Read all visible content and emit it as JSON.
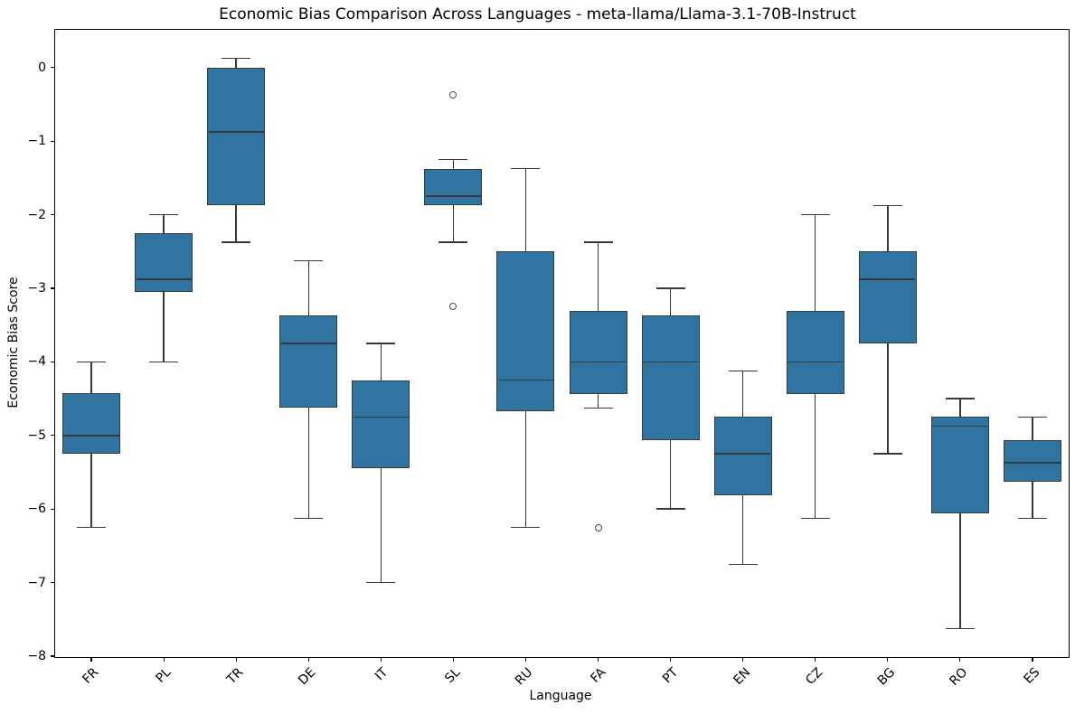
{
  "figure": {
    "background": "#ffffff",
    "box_fill": "#3074a2",
    "box_edge": "#35393c",
    "median_color": "#35393c",
    "outlier_edge": "#494949",
    "spine_color": "#000000"
  },
  "chart_data": {
    "type": "box",
    "title": "Economic Bias Comparison Across Languages - meta-llama/Llama-3.1-70B-Instruct",
    "xlabel": "Language",
    "ylabel": "Economic Bias Score",
    "grid": false,
    "legend": null,
    "ylim": [
      -8.0125,
      0.5125
    ],
    "ytick_values": [
      0,
      -1,
      -2,
      -3,
      -4,
      -5,
      -6,
      -7,
      -8
    ],
    "ytick_labels": [
      "0",
      "−1",
      "−2",
      "−3",
      "−4",
      "−5",
      "−6",
      "−7",
      "−8"
    ],
    "categories": [
      "FR",
      "PL",
      "TR",
      "DE",
      "IT",
      "SL",
      "RU",
      "FA",
      "PT",
      "EN",
      "CZ",
      "BG",
      "RO",
      "ES"
    ],
    "series": [
      {
        "label": "FR",
        "whislo": -6.25,
        "q1": -5.25,
        "med": -5.0,
        "q3": -4.43,
        "whishi": -4.0,
        "fliers": []
      },
      {
        "label": "PL",
        "whislo": -4.0,
        "q1": -3.05,
        "med": -2.875,
        "q3": -2.25,
        "whishi": -2.0,
        "fliers": []
      },
      {
        "label": "TR",
        "whislo": -2.375,
        "q1": -1.875,
        "med": -0.875,
        "q3": 0.0,
        "whishi": 0.125,
        "fliers": []
      },
      {
        "label": "DE",
        "whislo": -6.125,
        "q1": -4.625,
        "med": -3.75,
        "q3": -3.375,
        "whishi": -2.625,
        "fliers": []
      },
      {
        "label": "IT",
        "whislo": -7.0,
        "q1": -5.44,
        "med": -4.75,
        "q3": -4.25,
        "whishi": -3.75,
        "fliers": []
      },
      {
        "label": "SL",
        "whislo": -2.375,
        "q1": -1.875,
        "med": -1.75,
        "q3": -1.375,
        "whishi": -1.25,
        "fliers": [
          -0.375,
          -3.25
        ]
      },
      {
        "label": "RU",
        "whislo": -6.25,
        "q1": -4.67,
        "med": -4.25,
        "q3": -2.5,
        "whishi": -1.375,
        "fliers": []
      },
      {
        "label": "FA",
        "whislo": -4.625,
        "q1": -4.44,
        "med": -4.0,
        "q3": -3.31,
        "whishi": -2.375,
        "fliers": [
          -6.25
        ]
      },
      {
        "label": "PT",
        "whislo": -6.0,
        "q1": -5.06,
        "med": -4.0,
        "q3": -3.375,
        "whishi": -3.0,
        "fliers": []
      },
      {
        "label": "EN",
        "whislo": -6.75,
        "q1": -5.81,
        "med": -5.25,
        "q3": -4.75,
        "whishi": -4.125,
        "fliers": []
      },
      {
        "label": "CZ",
        "whislo": -6.125,
        "q1": -4.44,
        "med": -4.0,
        "q3": -3.31,
        "whishi": -2.0,
        "fliers": []
      },
      {
        "label": "BG",
        "whislo": -5.25,
        "q1": -3.75,
        "med": -2.875,
        "q3": -2.5,
        "whishi": -1.875,
        "fliers": []
      },
      {
        "label": "RO",
        "whislo": -7.625,
        "q1": -6.06,
        "med": -4.875,
        "q3": -4.75,
        "whishi": -4.5,
        "fliers": []
      },
      {
        "label": "ES",
        "whislo": -6.125,
        "q1": -5.625,
        "med": -5.375,
        "q3": -5.06,
        "whishi": -4.75,
        "fliers": []
      }
    ]
  }
}
